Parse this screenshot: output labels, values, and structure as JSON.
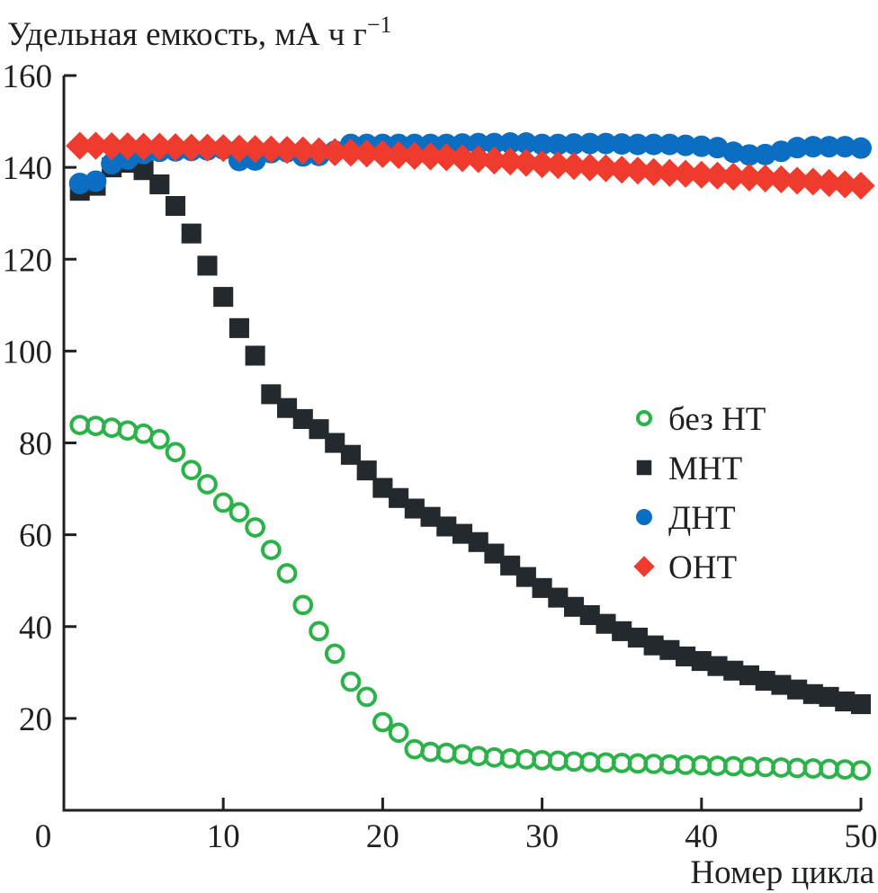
{
  "chart_data": {
    "type": "scatter",
    "title": "",
    "ylabel": "Удельная емкость, мА ч г",
    "ylabel_superscript": "−1",
    "xlabel": "Номер цикла",
    "xlim": [
      0,
      50
    ],
    "ylim": [
      0,
      160
    ],
    "x_ticks": [
      0,
      10,
      20,
      30,
      40,
      50
    ],
    "x_tick_labels": [
      "0",
      "10",
      "20",
      "30",
      "40",
      "50"
    ],
    "y_ticks": [
      20,
      40,
      60,
      80,
      100,
      120,
      140,
      160
    ],
    "y_tick_labels": [
      "20",
      "40",
      "60",
      "80",
      "100",
      "120",
      "140",
      "160"
    ],
    "grid": false,
    "legend_position": "center-right",
    "x": [
      1,
      2,
      3,
      4,
      5,
      6,
      7,
      8,
      9,
      10,
      11,
      12,
      13,
      14,
      15,
      16,
      17,
      18,
      19,
      20,
      21,
      22,
      23,
      24,
      25,
      26,
      27,
      28,
      29,
      30,
      31,
      32,
      33,
      34,
      35,
      36,
      37,
      38,
      39,
      40,
      41,
      42,
      43,
      44,
      45,
      46,
      47,
      48,
      49,
      50
    ],
    "series": [
      {
        "name": "без НТ",
        "marker": "open-circle",
        "color": "#2bb34a",
        "values": [
          83.9,
          83.7,
          83.3,
          82.7,
          82.0,
          80.8,
          78.0,
          74.1,
          71.0,
          67.0,
          64.9,
          61.6,
          56.7,
          51.6,
          44.7,
          39.0,
          34.1,
          28.0,
          24.7,
          19.2,
          16.9,
          13.3,
          12.7,
          12.5,
          12.2,
          11.8,
          11.5,
          11.3,
          11.1,
          10.9,
          10.8,
          10.6,
          10.5,
          10.4,
          10.3,
          10.2,
          10.1,
          10.0,
          9.9,
          9.8,
          9.7,
          9.6,
          9.5,
          9.4,
          9.3,
          9.2,
          9.1,
          9.0,
          8.9,
          8.7
        ]
      },
      {
        "name": "МНТ",
        "marker": "square",
        "color": "#23292c",
        "values": [
          134.9,
          136.0,
          140.0,
          141.0,
          139.4,
          136.3,
          131.6,
          125.6,
          118.6,
          111.8,
          105.0,
          99.0,
          90.6,
          87.6,
          85.2,
          83.0,
          80.0,
          77.4,
          74.0,
          70.2,
          68.0,
          65.7,
          63.9,
          61.8,
          60.2,
          58.4,
          55.9,
          53.3,
          50.8,
          48.4,
          46.3,
          44.3,
          42.5,
          40.6,
          39.0,
          37.6,
          35.9,
          34.9,
          33.5,
          32.5,
          31.4,
          30.4,
          29.4,
          28.2,
          27.3,
          26.3,
          25.3,
          24.7,
          23.7,
          23.1
        ]
      },
      {
        "name": "ДНТ",
        "marker": "filled-circle",
        "color": "#0a6fc2",
        "values": [
          136.5,
          137.0,
          140.8,
          141.8,
          143.0,
          143.5,
          143.6,
          143.7,
          143.8,
          144.0,
          141.5,
          141.6,
          143.2,
          143.4,
          142.5,
          142.6,
          143.5,
          145.0,
          145.0,
          145.0,
          145.0,
          145.0,
          145.0,
          145.0,
          145.1,
          145.2,
          145.2,
          145.3,
          145.3,
          145.0,
          145.0,
          145.1,
          145.2,
          145.2,
          145.1,
          145.0,
          145.0,
          145.0,
          144.8,
          144.6,
          144.3,
          143.3,
          142.7,
          142.8,
          143.5,
          144.3,
          144.5,
          144.5,
          144.5,
          144.2
        ]
      },
      {
        "name": "ОНТ",
        "marker": "diamond",
        "color": "#ee3b2e",
        "values": [
          144.7,
          144.7,
          144.6,
          144.6,
          144.5,
          144.5,
          144.4,
          144.3,
          144.3,
          144.2,
          144.1,
          144.0,
          143.9,
          143.8,
          143.7,
          143.5,
          143.3,
          143.2,
          143.0,
          142.9,
          142.7,
          142.5,
          142.4,
          142.2,
          142.0,
          141.8,
          141.5,
          141.3,
          141.0,
          140.7,
          140.5,
          140.3,
          140.0,
          139.8,
          139.5,
          139.3,
          139.0,
          138.8,
          138.6,
          138.4,
          138.2,
          138.0,
          137.8,
          137.6,
          137.4,
          137.1,
          136.9,
          136.6,
          136.3,
          136.0
        ]
      }
    ]
  }
}
